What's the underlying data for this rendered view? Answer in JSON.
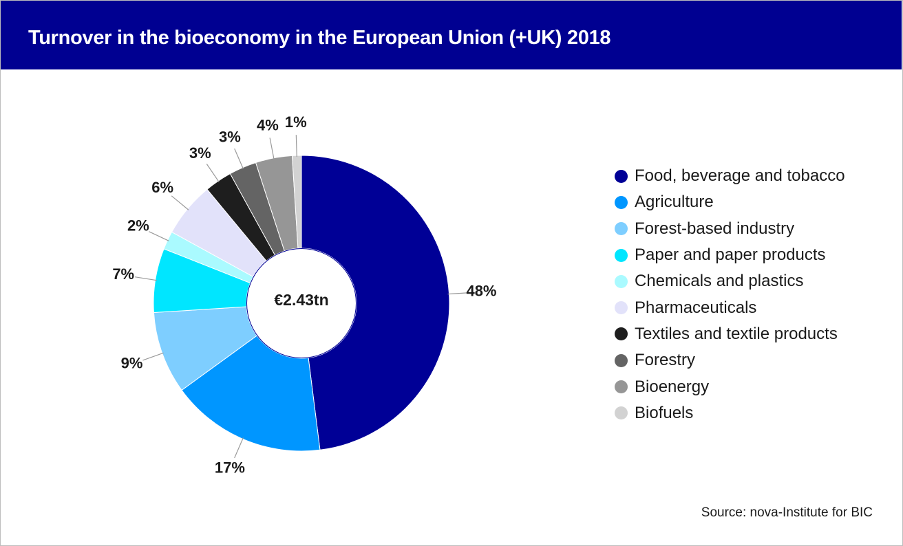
{
  "header": {
    "title": "Turnover in the bioeconomy in the European Union (+UK) 2018"
  },
  "source": "Source: nova-Institute for BIC",
  "chart_data": {
    "type": "pie",
    "variant": "donut",
    "title": "Turnover in the bioeconomy in the European Union (+UK) 2018",
    "center_label": "€2.43tn",
    "unit": "%",
    "legend_position": "right",
    "categories": [
      "Food, beverage and tobacco",
      "Agriculture",
      "Forest-based industry",
      "Paper and paper products",
      "Chemicals and plastics",
      "Pharmaceuticals",
      "Textiles and textile products",
      "Forestry",
      "Bioenergy",
      "Biofuels"
    ],
    "values": [
      48,
      17,
      9,
      7,
      2,
      6,
      3,
      3,
      4,
      1
    ],
    "data_labels": [
      "48%",
      "17%",
      "9%",
      "7%",
      "2%",
      "6%",
      "3%",
      "3%",
      "4%",
      "1%"
    ],
    "colors": [
      "#000096",
      "#0096FF",
      "#7ECEFF",
      "#00E6FF",
      "#AAFAFF",
      "#E2E2FA",
      "#1E1E1E",
      "#646464",
      "#969696",
      "#D2D2D2"
    ]
  }
}
